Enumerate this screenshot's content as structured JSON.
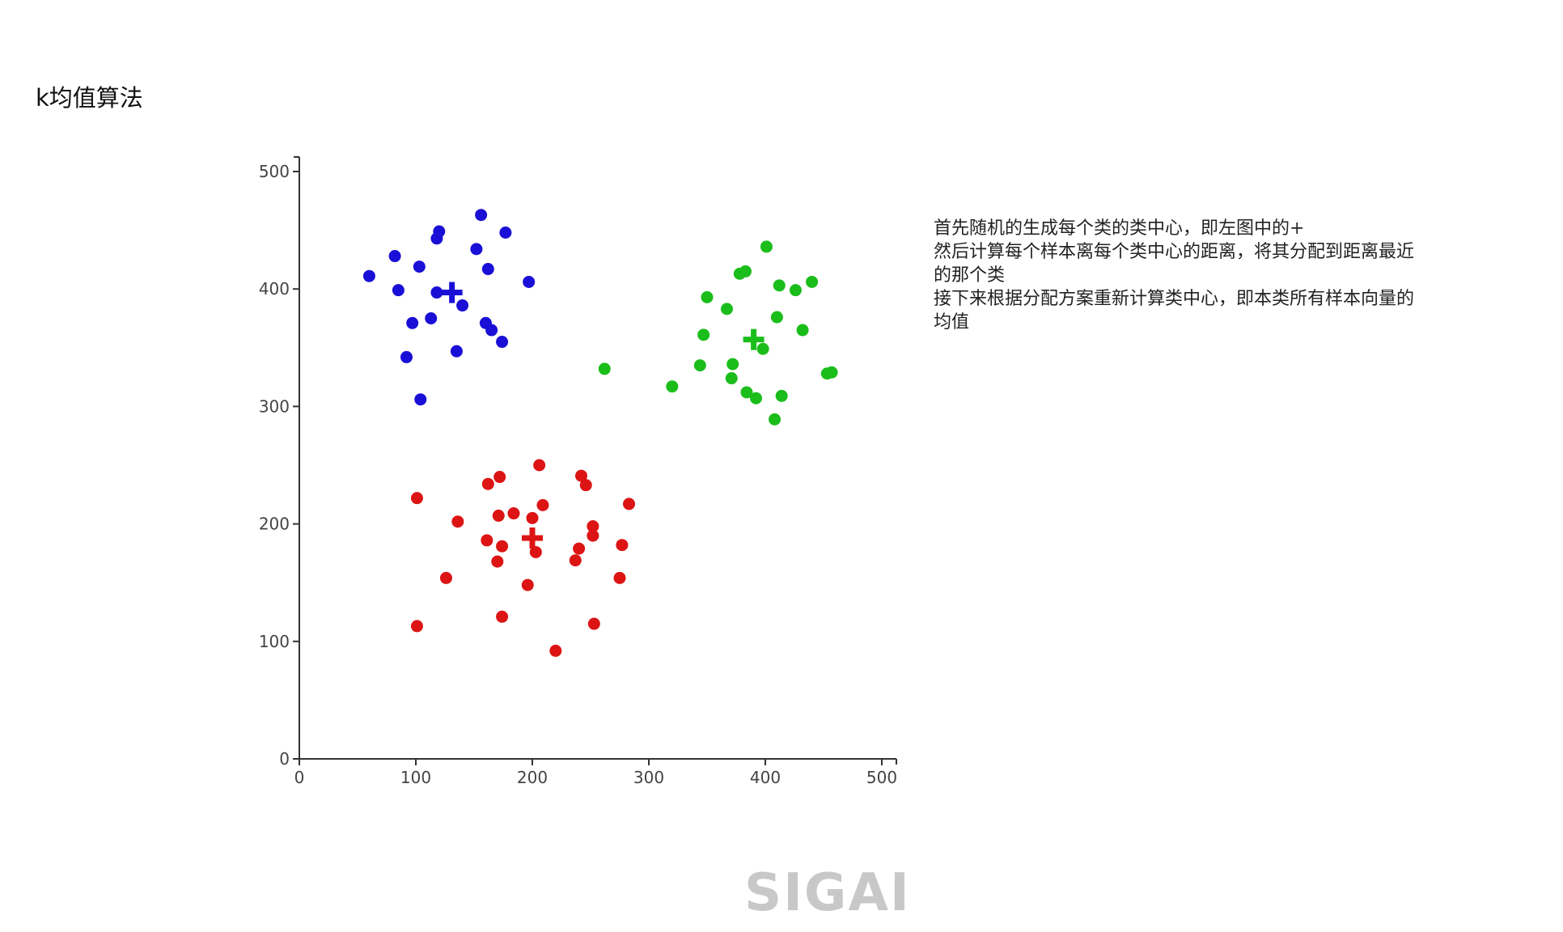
{
  "slide": {
    "title": "k均值算法",
    "explanation_lines": [
      "首先随机的生成每个类的类中心，即左图中的+",
      "然后计算每个样本离每个类中心的距离，将其分配到距离最近",
      "的那个类",
      "接下来根据分配方案重新计算类中心，即本类所有样本向量的",
      "均值"
    ],
    "logo_text": "SIGAI"
  },
  "chart_data": {
    "type": "scatter",
    "xlim": [
      0,
      500
    ],
    "ylim": [
      0,
      500
    ],
    "xticks": [
      0,
      100,
      200,
      300,
      400,
      500
    ],
    "yticks": [
      0,
      100,
      200,
      300,
      400,
      500
    ],
    "grid": false,
    "legend": "none",
    "series": [
      {
        "color": "#1a0fd6",
        "points": [
          [
            60,
            411
          ],
          [
            82,
            428
          ],
          [
            85,
            399
          ],
          [
            97,
            371
          ],
          [
            92,
            342
          ],
          [
            104,
            306
          ],
          [
            103,
            419
          ],
          [
            113,
            375
          ],
          [
            118,
            397
          ],
          [
            118,
            443
          ],
          [
            120,
            449
          ],
          [
            152,
            434
          ],
          [
            156,
            463
          ],
          [
            162,
            417
          ],
          [
            160,
            371
          ],
          [
            165,
            365
          ],
          [
            174,
            355
          ],
          [
            177,
            448
          ],
          [
            197,
            406
          ],
          [
            140,
            386
          ],
          [
            135,
            347
          ]
        ],
        "centroid": [
          131,
          397
        ]
      },
      {
        "color": "#1bbd1b",
        "points": [
          [
            262,
            332
          ],
          [
            320,
            317
          ],
          [
            344,
            335
          ],
          [
            347,
            361
          ],
          [
            350,
            393
          ],
          [
            367,
            383
          ],
          [
            371,
            324
          ],
          [
            372,
            336
          ],
          [
            378,
            413
          ],
          [
            383,
            415
          ],
          [
            384,
            312
          ],
          [
            392,
            307
          ],
          [
            398,
            349
          ],
          [
            401,
            436
          ],
          [
            408,
            289
          ],
          [
            410,
            376
          ],
          [
            412,
            403
          ],
          [
            414,
            309
          ],
          [
            426,
            399
          ],
          [
            432,
            365
          ],
          [
            440,
            406
          ],
          [
            453,
            328
          ],
          [
            457,
            329
          ]
        ],
        "centroid": [
          390,
          357
        ]
      },
      {
        "color": "#dd1414",
        "points": [
          [
            101,
            222
          ],
          [
            101,
            113
          ],
          [
            126,
            154
          ],
          [
            136,
            202
          ],
          [
            161,
            186
          ],
          [
            162,
            234
          ],
          [
            171,
            207
          ],
          [
            170,
            168
          ],
          [
            172,
            240
          ],
          [
            174,
            181
          ],
          [
            174,
            121
          ],
          [
            184,
            209
          ],
          [
            196,
            148
          ],
          [
            200,
            205
          ],
          [
            203,
            176
          ],
          [
            206,
            250
          ],
          [
            209,
            216
          ],
          [
            220,
            92
          ],
          [
            237,
            169
          ],
          [
            240,
            179
          ],
          [
            242,
            241
          ],
          [
            246,
            233
          ],
          [
            252,
            190
          ],
          [
            252,
            198
          ],
          [
            253,
            115
          ],
          [
            275,
            154
          ],
          [
            277,
            182
          ],
          [
            283,
            217
          ]
        ],
        "centroid": [
          200,
          188
        ]
      }
    ]
  }
}
